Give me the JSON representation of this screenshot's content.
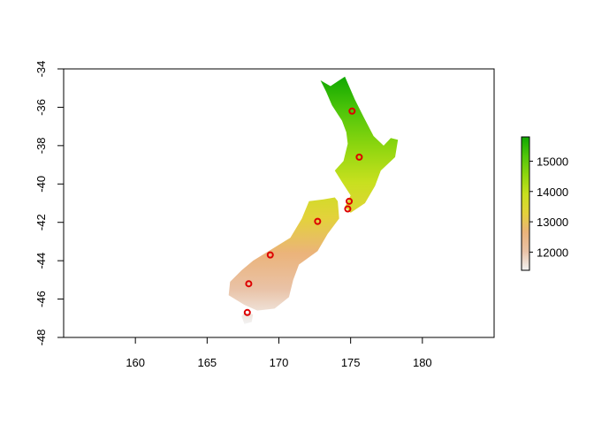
{
  "chart_data": {
    "type": "raster-map",
    "xlim": [
      155,
      185
    ],
    "ylim": [
      -48,
      -34
    ],
    "x_ticks": [
      160,
      165,
      170,
      175,
      180
    ],
    "y_ticks": [
      -34,
      -36,
      -38,
      -40,
      -42,
      -44,
      -46,
      -48
    ],
    "x_tick_labels": [
      "160",
      "165",
      "170",
      "175",
      "180"
    ],
    "y_tick_labels": [
      "-34",
      "-36",
      "-38",
      "-40",
      "-42",
      "-44",
      "-46",
      "-48"
    ],
    "legend": {
      "placement": "right",
      "min": 11400,
      "max": 15800,
      "ticks": [
        12000,
        13000,
        14000,
        15000
      ],
      "tick_labels": [
        "12000",
        "13000",
        "14000",
        "15000"
      ],
      "colors": [
        "#f2f2f2",
        "#e9c2a6",
        "#ebb37a",
        "#e3d23b",
        "#c8e01f",
        "#8fd60f",
        "#51c60a",
        "#10a800"
      ]
    },
    "points": [
      {
        "lon": 175.1,
        "lat": -36.2
      },
      {
        "lon": 175.6,
        "lat": -38.6
      },
      {
        "lon": 174.9,
        "lat": -40.9
      },
      {
        "lon": 174.8,
        "lat": -41.3
      },
      {
        "lon": 172.7,
        "lat": -41.95
      },
      {
        "lon": 169.4,
        "lat": -43.7
      },
      {
        "lon": 167.9,
        "lat": -45.2
      },
      {
        "lon": 167.8,
        "lat": -46.7
      }
    ],
    "point_color": "#dd0000",
    "north_island": [
      [
        174.6,
        -34.4
      ],
      [
        175.3,
        -35.6
      ],
      [
        175.9,
        -36.5
      ],
      [
        176.6,
        -37.5
      ],
      [
        177.3,
        -38.0
      ],
      [
        177.8,
        -37.6
      ],
      [
        178.3,
        -37.7
      ],
      [
        178.1,
        -38.6
      ],
      [
        177.1,
        -39.3
      ],
      [
        176.7,
        -40.1
      ],
      [
        176.0,
        -41.0
      ],
      [
        175.0,
        -41.5
      ],
      [
        174.6,
        -41.2
      ],
      [
        175.0,
        -40.6
      ],
      [
        174.4,
        -39.9
      ],
      [
        173.9,
        -39.3
      ],
      [
        174.5,
        -38.8
      ],
      [
        174.8,
        -37.9
      ],
      [
        174.7,
        -37.3
      ],
      [
        174.4,
        -36.7
      ],
      [
        173.7,
        -35.9
      ],
      [
        173.3,
        -35.2
      ],
      [
        172.9,
        -34.6
      ],
      [
        173.6,
        -34.9
      ]
    ],
    "south_island": [
      [
        174.1,
        -40.9
      ],
      [
        174.2,
        -41.8
      ],
      [
        173.4,
        -42.6
      ],
      [
        172.7,
        -43.5
      ],
      [
        171.4,
        -44.2
      ],
      [
        171.0,
        -45.0
      ],
      [
        170.7,
        -45.9
      ],
      [
        169.7,
        -46.5
      ],
      [
        168.5,
        -46.6
      ],
      [
        167.6,
        -46.3
      ],
      [
        166.5,
        -45.8
      ],
      [
        166.6,
        -45.1
      ],
      [
        167.4,
        -44.5
      ],
      [
        168.2,
        -44.0
      ],
      [
        169.5,
        -43.4
      ],
      [
        170.8,
        -42.8
      ],
      [
        171.6,
        -41.8
      ],
      [
        172.1,
        -40.9
      ],
      [
        173.1,
        -40.8
      ],
      [
        173.9,
        -40.7
      ]
    ],
    "stewart_island": [
      [
        167.6,
        -46.7
      ],
      [
        168.2,
        -46.8
      ],
      [
        168.1,
        -47.2
      ],
      [
        167.6,
        -47.3
      ],
      [
        167.4,
        -46.9
      ]
    ]
  }
}
